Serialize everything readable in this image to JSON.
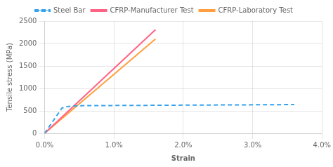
{
  "chart_data": {
    "type": "line",
    "xlabel": "Strain",
    "ylabel": "Tensile stress (MPa)",
    "xlim": [
      0.0,
      0.04
    ],
    "ylim": [
      0,
      2500
    ],
    "xticks": [
      {
        "value": 0.0,
        "label": "0.0%"
      },
      {
        "value": 0.01,
        "label": "1.0%"
      },
      {
        "value": 0.02,
        "label": "2.0%"
      },
      {
        "value": 0.03,
        "label": "3.0%"
      },
      {
        "value": 0.04,
        "label": "4.0%"
      }
    ],
    "yticks": [
      0,
      500,
      1000,
      1500,
      2000,
      2500
    ],
    "grid": true,
    "legend": "top",
    "series": [
      {
        "name": "Steel Bar",
        "line_style": "dashed",
        "x": [
          0.0,
          0.0025,
          0.003,
          0.004,
          0.005,
          0.036
        ],
        "values": [
          0,
          560,
          590,
          605,
          615,
          640
        ]
      },
      {
        "name": "CFRP-Manufacturer Test",
        "line_style": "solid",
        "x": [
          0.0,
          0.016
        ],
        "values": [
          0,
          2310
        ]
      },
      {
        "name": "CFRP-Laboratory Test",
        "line_style": "solid",
        "x": [
          0.0,
          0.016
        ],
        "values": [
          0,
          2100
        ]
      }
    ]
  }
}
